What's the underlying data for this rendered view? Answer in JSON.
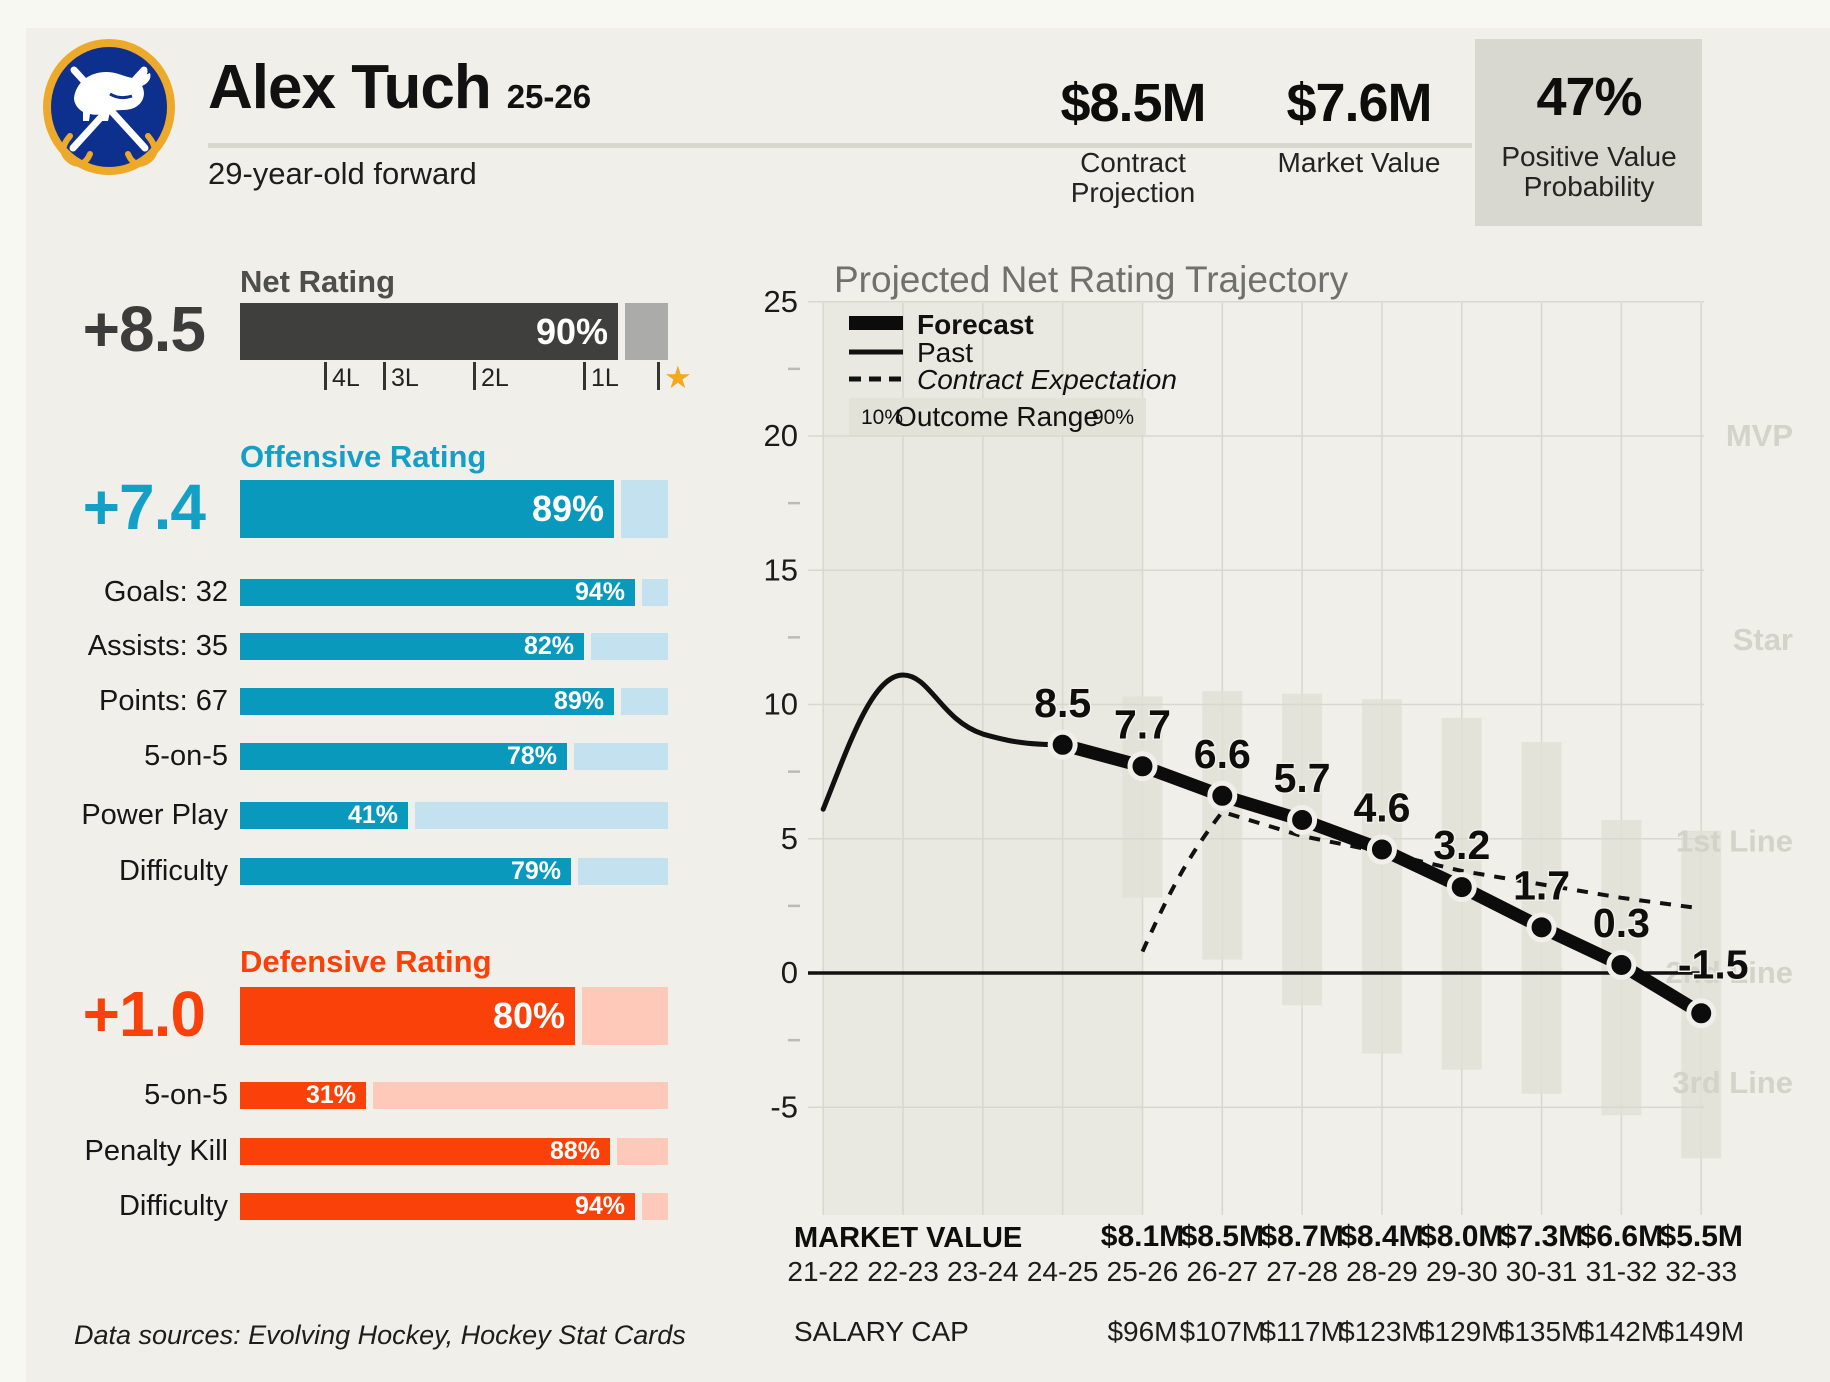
{
  "header": {
    "team_logo": "buffalo-sabres-logo",
    "player_name": "Alex Tuch",
    "season": "25-26",
    "subtitle": "29-year-old forward",
    "stats": [
      {
        "value": "$8.5M",
        "label": "Contract Projection"
      },
      {
        "value": "$7.6M",
        "label": "Market Value"
      },
      {
        "value": "47%",
        "label": "Positive Value Probability",
        "highlighted": true
      }
    ]
  },
  "ratings": {
    "net": {
      "title": "Net Rating",
      "value": "+8.5",
      "percentile": 90,
      "scale_ticks": [
        "4L",
        "3L",
        "2L",
        "1L"
      ],
      "scale_end_icon": "star"
    },
    "offensive": {
      "title": "Offensive Rating",
      "value": "+7.4",
      "percentile": 89,
      "rows": [
        {
          "label": "Goals: 32",
          "percentile": 94
        },
        {
          "label": "Assists: 35",
          "percentile": 82
        },
        {
          "label": "Points: 67",
          "percentile": 89
        },
        {
          "label": "5-on-5",
          "percentile": 78
        },
        {
          "label": "Power Play",
          "percentile": 41
        },
        {
          "label": "Difficulty",
          "percentile": 79
        }
      ]
    },
    "defensive": {
      "title": "Defensive Rating",
      "value": "+1.0",
      "percentile": 80,
      "rows": [
        {
          "label": "5-on-5",
          "percentile": 31
        },
        {
          "label": "Penalty Kill",
          "percentile": 88
        },
        {
          "label": "Difficulty",
          "percentile": 94
        }
      ]
    }
  },
  "footnote": "Data sources: Evolving Hockey, Hockey Stat Cards",
  "chart_data": {
    "type": "line",
    "title": "Projected Net Rating Trajectory",
    "xlabel": "",
    "ylabel": "",
    "ylim": [
      -7.5,
      25
    ],
    "yticks": [
      25,
      20,
      15,
      10,
      5,
      0,
      -5
    ],
    "grid": true,
    "seasons": [
      "21-22",
      "22-23",
      "23-24",
      "24-25",
      "25-26",
      "26-27",
      "27-28",
      "28-29",
      "29-30",
      "30-31",
      "31-32",
      "32-33"
    ],
    "series": [
      {
        "name": "Past",
        "style": "thin-solid",
        "seasons": [
          "21-22",
          "22-23",
          "23-24",
          "24-25"
        ],
        "values": [
          6.1,
          11.1,
          8.9,
          8.5
        ]
      },
      {
        "name": "Forecast",
        "style": "thick-solid-dots",
        "seasons": [
          "24-25",
          "25-26",
          "26-27",
          "27-28",
          "28-29",
          "29-30",
          "30-31",
          "31-32",
          "32-33"
        ],
        "values": [
          8.5,
          7.7,
          6.6,
          5.7,
          4.6,
          3.2,
          1.7,
          0.3,
          -1.5
        ],
        "point_labels": [
          "8.5",
          "7.7",
          "6.6",
          "5.7",
          "4.6",
          "3.2",
          "1.7",
          "0.3",
          "-1.5"
        ]
      },
      {
        "name": "Contract Expectation",
        "style": "dashed",
        "seasons": [
          "25-26",
          "26-27",
          "27-28",
          "28-29",
          "29-30",
          "30-31",
          "31-32",
          "32-33"
        ],
        "values": [
          0.8,
          6.0,
          5.1,
          4.5,
          3.8,
          3.3,
          2.8,
          2.4
        ]
      }
    ],
    "outcome_range": {
      "label": "Outcome Range",
      "low_label": "10%",
      "high_label": "90%",
      "seasons": [
        "25-26",
        "26-27",
        "27-28",
        "28-29",
        "29-30",
        "30-31",
        "31-32",
        "32-33"
      ],
      "p90": [
        10.3,
        10.5,
        10.4,
        10.2,
        9.5,
        8.6,
        5.7,
        5.3
      ],
      "p10": [
        2.8,
        0.5,
        -1.2,
        -3.0,
        -3.6,
        -4.5,
        -5.3,
        -6.9
      ]
    },
    "legend": {
      "position": "top-left",
      "entries": [
        "Forecast",
        "Past",
        "Contract Expectation"
      ]
    },
    "tier_labels": [
      {
        "label": "MVP",
        "value": 20.0
      },
      {
        "label": "Star",
        "value": 12.4
      },
      {
        "label": "1st Line",
        "value": 4.9
      },
      {
        "label": "2nd Line",
        "value": 0.0
      },
      {
        "label": "3rd Line",
        "value": -4.1
      }
    ],
    "past_shaded_region": [
      "21-22",
      "25-26"
    ]
  },
  "value_rows": {
    "market_value_label": "MARKET VALUE",
    "market_value_seasons": [
      "25-26",
      "26-27",
      "27-28",
      "28-29",
      "29-30",
      "30-31",
      "31-32",
      "32-33"
    ],
    "market_values": [
      "$8.1M",
      "$8.5M",
      "$8.7M",
      "$8.4M",
      "$8.0M",
      "$7.3M",
      "$6.6M",
      "$5.5M"
    ],
    "salary_cap_label": "SALARY CAP",
    "salary_cap_values": [
      "$96M",
      "$107M",
      "$117M",
      "$123M",
      "$129M",
      "$135M",
      "$142M",
      "$149M"
    ]
  },
  "colors": {
    "background": "#f0efe9",
    "net_bar": "#3f3f3d",
    "net_bar_light": "#ababa9",
    "offense": "#0999bd",
    "offense_title": "#149fc6",
    "offense_light": "#c3e1ee",
    "defense": "#fa4109",
    "defense_light": "#ffc9b9",
    "star_gold": "#f5a81c",
    "highlight_box": "#d9d8d0",
    "gridline": "#d8d8d0",
    "past_band": "#e9e9e1",
    "outcome_bar": "#e0e0d6",
    "tier_label": "#d3d3c9",
    "chart_title": "#70706c",
    "logo_navy": "#0d2f8e",
    "logo_gold": "#eda929"
  }
}
